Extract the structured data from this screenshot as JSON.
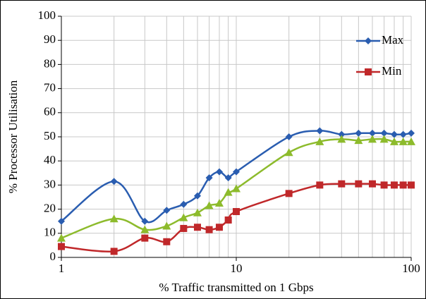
{
  "chart_data": {
    "type": "line",
    "xlabel": "% Traffic transmitted on 1 Gbps",
    "ylabel": "% Processor Utilisation",
    "x": [
      1,
      2,
      3,
      4,
      5,
      6,
      7,
      8,
      9,
      10,
      20,
      30,
      40,
      50,
      60,
      70,
      80,
      90,
      100
    ],
    "series": [
      {
        "name": "Max",
        "color": "#2a5db0",
        "marker": "diamond",
        "values": [
          15,
          31.5,
          15,
          19.5,
          22,
          25.5,
          33,
          35.5,
          33,
          35.5,
          50,
          52.5,
          51,
          51.5,
          51.5,
          51.5,
          51,
          51,
          51.5
        ]
      },
      {
        "name": "Min",
        "color": "#c0282a",
        "marker": "square",
        "values": [
          4.5,
          2.5,
          8,
          6.5,
          12,
          12.5,
          11.5,
          12.5,
          15.5,
          19,
          26.5,
          30,
          30.5,
          30.5,
          30.5,
          30,
          30,
          30,
          30
        ]
      },
      {
        "color": "#8dbb2c",
        "marker": "triangle",
        "values": [
          8,
          16,
          11.5,
          13,
          16.5,
          18.5,
          21.5,
          22.5,
          27,
          28.5,
          43.5,
          48,
          49,
          48.5,
          49,
          49,
          48,
          48,
          48
        ]
      }
    ],
    "xlim": [
      1,
      100
    ],
    "xticks": [
      1,
      10,
      100
    ],
    "x_minor_ticks": [
      2,
      3,
      4,
      5,
      6,
      7,
      8,
      9,
      20,
      30,
      40,
      50,
      60,
      70,
      80,
      90
    ],
    "xscale": "log",
    "ylim": [
      0,
      100
    ],
    "yticks": [
      0,
      10,
      20,
      30,
      40,
      50,
      60,
      70,
      80,
      90,
      100
    ],
    "grid": true,
    "legend": "upper right"
  }
}
